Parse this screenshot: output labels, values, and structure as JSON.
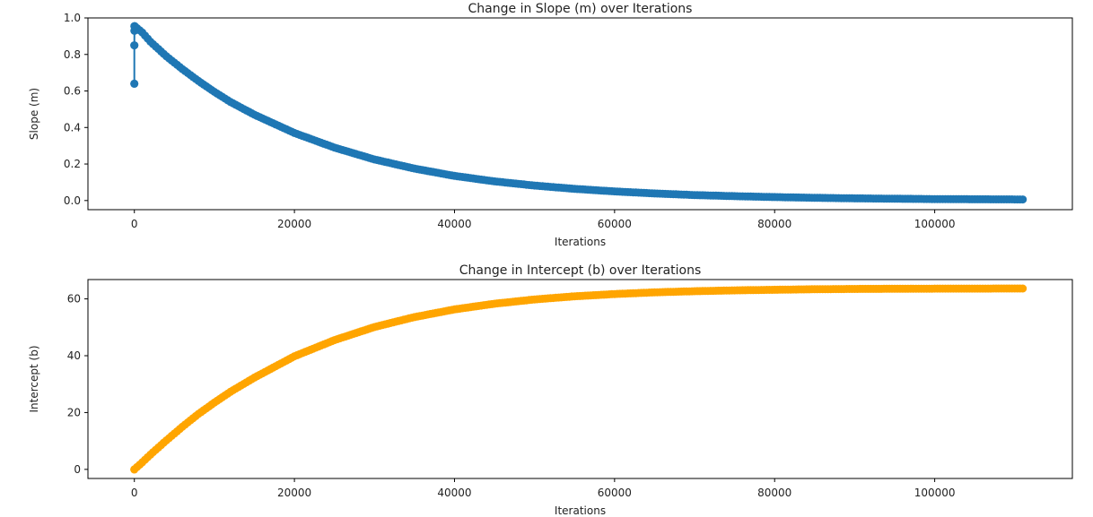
{
  "chart_data": [
    {
      "type": "line",
      "title": "Change in Slope (m) over Iterations",
      "xlabel": "Iterations",
      "ylabel": "Slope (m)",
      "xlim": [
        -5800,
        117200
      ],
      "ylim": [
        -0.05,
        1.0
      ],
      "xticks": [
        0,
        20000,
        40000,
        60000,
        80000,
        100000
      ],
      "xtick_labels": [
        "0",
        "20000",
        "40000",
        "60000",
        "80000",
        "100000"
      ],
      "yticks": [
        0.0,
        0.2,
        0.4,
        0.6,
        0.8,
        1.0
      ],
      "ytick_labels": [
        "0.0",
        "0.2",
        "0.4",
        "0.6",
        "0.8",
        "1.0"
      ],
      "grid": false,
      "marker": "circle",
      "color": "#1f77b4",
      "series": [
        {
          "x": [
            0,
            2,
            5,
            10,
            40,
            1000,
            2000,
            4000,
            6000,
            8000,
            10000,
            12000,
            15000,
            20000,
            25000,
            30000,
            35000,
            40000,
            45000,
            50000,
            55000,
            60000,
            65000,
            70000,
            75000,
            80000,
            85000,
            90000,
            95000,
            100000,
            105000,
            111000
          ],
          "y": [
            0.64,
            0.85,
            0.93,
            0.955,
            0.955,
            0.92,
            0.87,
            0.79,
            0.72,
            0.655,
            0.595,
            0.54,
            0.47,
            0.37,
            0.29,
            0.225,
            0.175,
            0.135,
            0.105,
            0.082,
            0.064,
            0.05,
            0.039,
            0.03,
            0.024,
            0.019,
            0.015,
            0.012,
            0.01,
            0.008,
            0.007,
            0.006
          ]
        }
      ]
    },
    {
      "type": "line",
      "title": "Change in Intercept (b) over Iterations",
      "xlabel": "Iterations",
      "ylabel": "Intercept (b)",
      "xlim": [
        -5800,
        117200
      ],
      "ylim": [
        -3.2,
        66.8
      ],
      "xticks": [
        0,
        20000,
        40000,
        60000,
        80000,
        100000
      ],
      "xtick_labels": [
        "0",
        "20000",
        "40000",
        "60000",
        "80000",
        "100000"
      ],
      "yticks": [
        0,
        20,
        40,
        60
      ],
      "ytick_labels": [
        "0",
        "20",
        "40",
        "60"
      ],
      "grid": false,
      "marker": "circle",
      "color": "#ffa500",
      "series": [
        {
          "x": [
            0,
            1000,
            2000,
            4000,
            6000,
            8000,
            10000,
            12000,
            15000,
            20000,
            25000,
            30000,
            35000,
            40000,
            45000,
            50000,
            55000,
            60000,
            65000,
            70000,
            75000,
            80000,
            85000,
            90000,
            95000,
            100000,
            105000,
            111000
          ],
          "y": [
            0,
            2.5,
            5.2,
            10.2,
            15.0,
            19.5,
            23.5,
            27.3,
            32.3,
            39.8,
            45.5,
            50.1,
            53.6,
            56.3,
            58.3,
            59.8,
            60.9,
            61.7,
            62.3,
            62.7,
            63.0,
            63.2,
            63.4,
            63.5,
            63.55,
            63.6,
            63.62,
            63.65
          ]
        }
      ]
    }
  ]
}
